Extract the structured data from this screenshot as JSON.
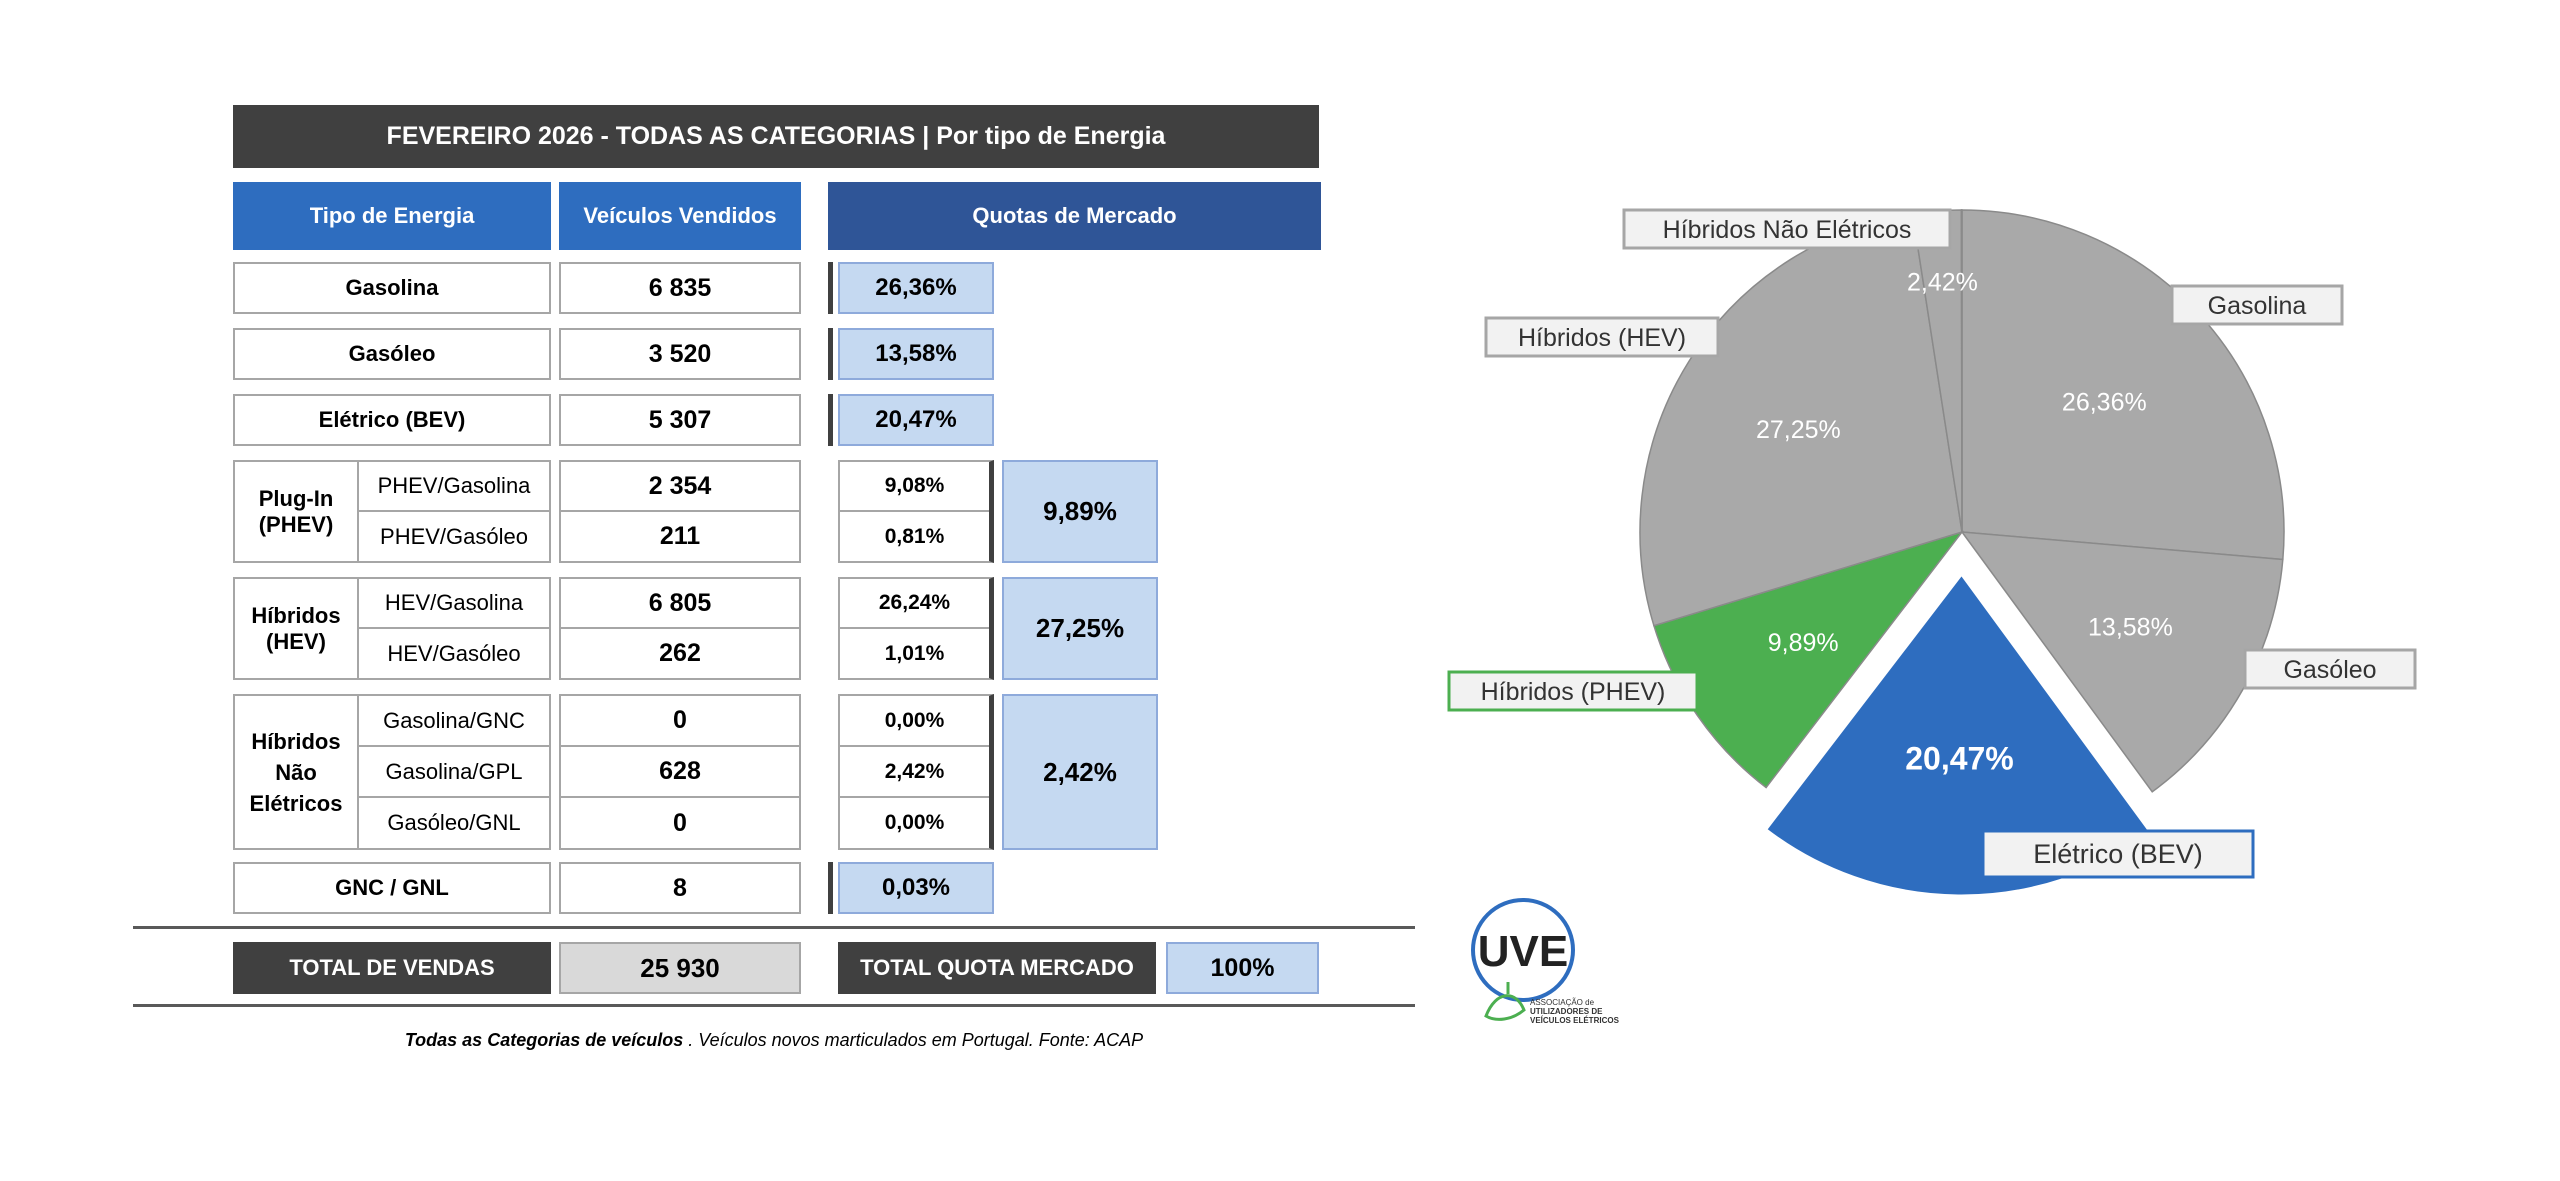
{
  "title": "FEVEREIRO 2026  - TODAS AS CATEGORIAS | Por tipo de Energia",
  "headers": {
    "tipo": "Tipo de Energia",
    "vendidos": "Veículos Vendidos",
    "quotas": "Quotas de Mercado"
  },
  "rows": {
    "gasolina": {
      "label": "Gasolina",
      "value": "6 835",
      "share": "26,36%"
    },
    "gasoleo": {
      "label": "Gasóleo",
      "value": "3 520",
      "share": "13,58%"
    },
    "bev": {
      "label": "Elétrico (BEV)",
      "value": "5 307",
      "share": "20,47%"
    },
    "phev": {
      "label": "Plug-In (PHEV)",
      "subs": [
        {
          "label": "PHEV/Gasolina",
          "value": "2 354",
          "share": "9,08%"
        },
        {
          "label": "PHEV/Gasóleo",
          "value": "211",
          "share": "0,81%"
        }
      ],
      "total_share": "9,89%"
    },
    "hev": {
      "label": "Híbridos (HEV)",
      "subs": [
        {
          "label": "HEV/Gasolina",
          "value": "6 805",
          "share": "26,24%"
        },
        {
          "label": "HEV/Gasóleo",
          "value": "262",
          "share": "1,01%"
        }
      ],
      "total_share": "27,25%"
    },
    "hne": {
      "label": "Híbridos Não Elétricos",
      "subs": [
        {
          "label": "Gasolina/GNC",
          "value": "0",
          "share": "0,00%"
        },
        {
          "label": "Gasolina/GPL",
          "value": "628",
          "share": "2,42%"
        },
        {
          "label": "Gasóleo/GNL",
          "value": "0",
          "share": "0,00%"
        }
      ],
      "total_share": "2,42%"
    },
    "gnc": {
      "label": "GNC / GNL",
      "value": "8",
      "share": "0,03%"
    }
  },
  "totals": {
    "vendas_label": "TOTAL DE VENDAS",
    "vendas_value": "25 930",
    "quota_label": "TOTAL QUOTA MERCADO",
    "quota_value": "100%"
  },
  "footer": {
    "bold": "Todas as Categorias de veículos",
    "rest": " . Veículos novos marticulados em Portugal. Fonte: ACAP"
  },
  "logo": {
    "text": "UVE",
    "line1": "ASSOCIAÇÃO de",
    "line2": "UTILIZADORES DE",
    "line3": "VEÍCULOS ELÉTRICOS"
  },
  "colors": {
    "grey_slice": "#a9a9a9",
    "bev": "#2e6dbf",
    "phev": "#4caf50",
    "header_blue": "#2e6dbf",
    "header_dark_blue": "#2f5597",
    "title_bg": "#404040",
    "quota_fill": "#c5d9f1"
  },
  "chart_data": {
    "type": "pie",
    "slices": [
      {
        "name": "Gasolina",
        "value": 26.36,
        "label": "26,36%",
        "color": "#a9a9a9"
      },
      {
        "name": "Gasóleo",
        "value": 13.58,
        "label": "13,58%",
        "color": "#a9a9a9"
      },
      {
        "name": "Elétrico (BEV)",
        "value": 20.47,
        "label": "20,47%",
        "color": "#2e6dbf",
        "exploded": true
      },
      {
        "name": "Híbridos (PHEV)",
        "value": 9.89,
        "label": "9,89%",
        "color": "#4caf50"
      },
      {
        "name": "Híbridos (HEV)",
        "value": 27.25,
        "label": "27,25%",
        "color": "#a9a9a9"
      },
      {
        "name": "Híbridos Não Elétricos",
        "value": 2.42,
        "label": "2,42%",
        "color": "#a9a9a9"
      },
      {
        "name": "GNC / GNL",
        "value": 0.03,
        "label": "",
        "color": "#a9a9a9"
      }
    ],
    "start": "12 o'clock",
    "direction": "clockwise"
  }
}
